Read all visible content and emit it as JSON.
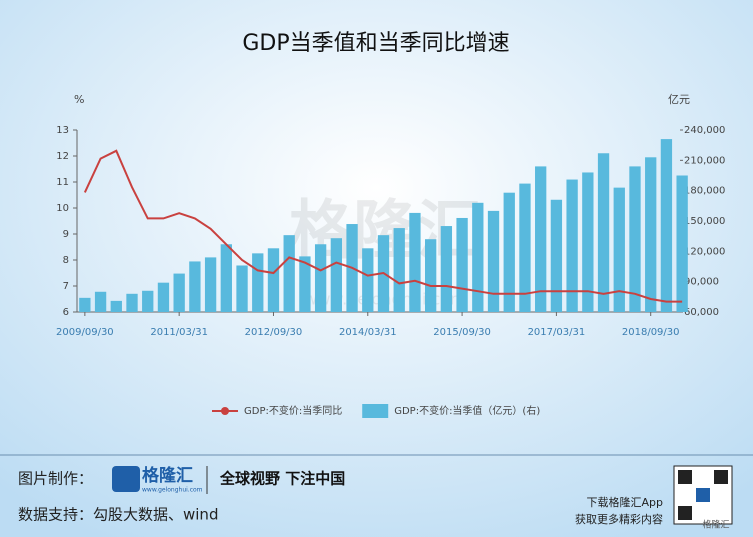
{
  "chart_data": {
    "type": "bar",
    "title": "GDP当季值和当季同比增速",
    "y_label": "%",
    "y2_label": "亿元",
    "categories": [
      "2009/09/30",
      null,
      null,
      null,
      null,
      null,
      "2011/03/31",
      null,
      null,
      null,
      null,
      null,
      "2012/09/30",
      null,
      null,
      null,
      null,
      null,
      "2014/03/31",
      null,
      null,
      null,
      null,
      null,
      "2015/09/30",
      null,
      null,
      null,
      null,
      null,
      "2017/03/31",
      null,
      null,
      null,
      null,
      null,
      "2018/09/30",
      null,
      null
    ],
    "series": [
      {
        "name": "GDP:不变价:当季值（亿元）(右)",
        "type": "bar",
        "axis": "y2",
        "color": "#58b9dd",
        "values": [
          74000,
          80000,
          71000,
          78000,
          81000,
          89000,
          98000,
          110000,
          114000,
          127000,
          106000,
          118000,
          123000,
          136000,
          115000,
          127000,
          133000,
          147000,
          123000,
          136000,
          143000,
          158000,
          132000,
          145000,
          153000,
          168000,
          160000,
          178000,
          187000,
          204000,
          171000,
          191000,
          198000,
          217000,
          183000,
          204000,
          213000,
          231000,
          195000
        ]
      },
      {
        "name": "GDP:不变价:当季同比",
        "type": "line",
        "color": "#c9413f",
        "values": [
          10.6,
          11.9,
          12.2,
          10.8,
          9.6,
          9.6,
          9.8,
          9.6,
          9.2,
          8.6,
          8.0,
          7.6,
          7.5,
          8.1,
          7.9,
          7.6,
          7.9,
          7.7,
          7.4,
          7.5,
          7.1,
          7.2,
          7.0,
          7.0,
          6.9,
          6.8,
          6.7,
          6.7,
          6.7,
          6.8,
          6.8,
          6.8,
          6.8,
          6.7,
          6.8,
          6.7,
          6.5,
          6.4,
          6.4
        ]
      }
    ],
    "ylim": [
      6,
      13
    ],
    "yticks": [
      6,
      7,
      8,
      9,
      10,
      11,
      12,
      13
    ],
    "y2lim": [
      60000,
      240000
    ],
    "y2ticks": [
      {
        "value": 60000,
        "label": "60,000"
      },
      {
        "value": 90000,
        "label": "90,000"
      },
      {
        "value": 120000,
        "label": "120,000"
      },
      {
        "value": 150000,
        "label": "150,000"
      },
      {
        "value": 180000,
        "label": "180,000"
      },
      {
        "value": 210000,
        "label": "210,000"
      },
      {
        "value": 240000,
        "label": "240,000"
      }
    ],
    "legend": "bottom"
  },
  "watermark": {
    "logo": "格隆汇",
    "url": "www.gelonghui.com"
  },
  "footer": {
    "made_by_label": "图片制作：",
    "logo": "格隆汇",
    "logo_url": "www.gelonghui.com",
    "slogan": "全球视野 下注中国",
    "source": "数据支持：勾股大数据、wind",
    "download": "下载格隆汇App",
    "more": "获取更多精彩内容",
    "qr_caption": "格隆汇"
  }
}
